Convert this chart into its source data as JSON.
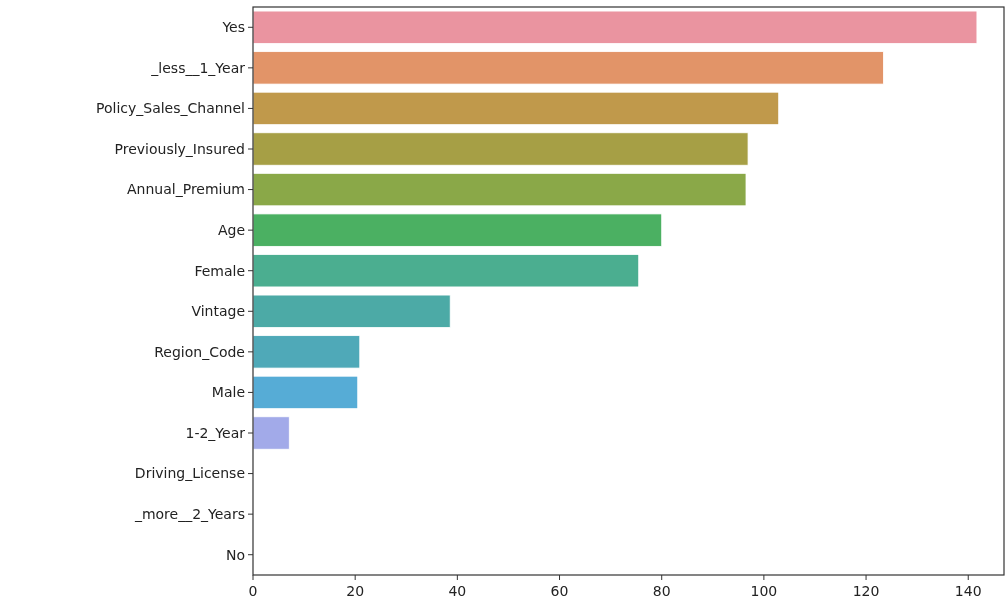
{
  "chart_data": {
    "type": "bar",
    "orientation": "horizontal",
    "categories": [
      "Yes",
      "_less__1_Year",
      "Policy_Sales_Channel",
      "Previously_Insured",
      "Annual_Premium",
      "Age",
      "Female",
      "Vintage",
      "Region_Code",
      "Male",
      "1-2_Year",
      "Driving_License",
      "_more__2_Years",
      "No"
    ],
    "values": [
      141.7,
      123.4,
      102.9,
      96.9,
      96.5,
      80.0,
      75.5,
      38.6,
      20.9,
      20.5,
      7.1,
      0,
      0,
      0
    ],
    "colors": [
      "#ea94a0",
      "#e29468",
      "#c0994b",
      "#a69f45",
      "#8aa848",
      "#4bb062",
      "#4bae90",
      "#4caaa6",
      "#4fa9b8",
      "#56acd6",
      "#a2aae9",
      "#c8a0e6",
      "#e08fd8",
      "#e993c0"
    ],
    "xlim": [
      0,
      147
    ],
    "xticks": [
      0,
      20,
      40,
      60,
      80,
      100,
      120,
      140
    ],
    "grid": false
  }
}
